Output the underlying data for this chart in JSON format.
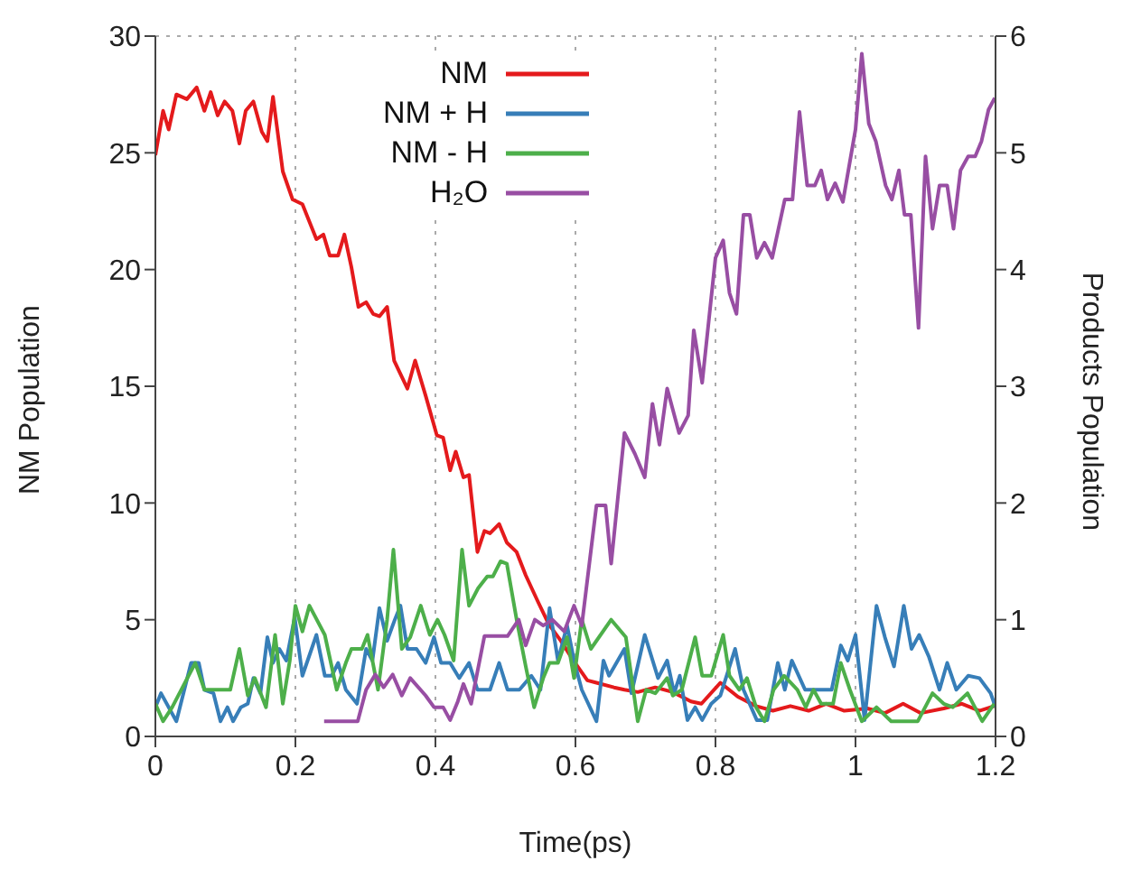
{
  "chart_data": {
    "type": "line",
    "xlabel": "Time(ps)",
    "ylabel": "NM Population",
    "y2label": "Products Population",
    "xlim": [
      0,
      1.2
    ],
    "xticks": [
      0,
      0.2,
      0.4,
      0.6,
      0.8,
      1,
      1.2
    ],
    "ylim": [
      0,
      30
    ],
    "yticks": [
      0,
      5,
      10,
      15,
      20,
      25,
      30
    ],
    "y2lim": [
      0,
      6
    ],
    "y2ticks": [
      0,
      1,
      2,
      3,
      4,
      5,
      6
    ],
    "grid": true,
    "legend": "top",
    "line_style": "solid",
    "marker": "none",
    "series": [
      {
        "name": "NM",
        "color": "#e41a1c",
        "x": [
          0,
          0.011,
          0.019,
          0.03,
          0.045,
          0.059,
          0.07,
          0.079,
          0.089,
          0.099,
          0.11,
          0.12,
          0.129,
          0.14,
          0.152,
          0.16,
          0.168,
          0.182,
          0.196,
          0.21,
          0.23,
          0.24,
          0.249,
          0.261,
          0.27,
          0.28,
          0.29,
          0.301,
          0.311,
          0.32,
          0.331,
          0.341,
          0.36,
          0.371,
          0.386,
          0.402,
          0.411,
          0.421,
          0.429,
          0.44,
          0.448,
          0.46,
          0.47,
          0.478,
          0.491,
          0.502,
          0.516,
          0.529,
          0.546,
          0.562,
          0.579,
          0.596,
          0.617,
          0.63,
          0.655,
          0.67,
          0.689,
          0.714,
          0.739,
          0.765,
          0.78,
          0.807,
          0.832,
          0.858,
          0.882,
          0.907,
          0.933,
          0.958,
          0.984,
          1.017,
          1.042,
          1.068,
          1.093,
          1.126,
          1.152,
          1.177,
          1.198
        ],
        "values": [
          24.9,
          26.8,
          26,
          27.5,
          27.3,
          27.8,
          26.8,
          27.6,
          26.6,
          27.2,
          26.8,
          25.4,
          26.8,
          27.2,
          25.9,
          25.5,
          27.4,
          24.2,
          23,
          22.8,
          21.3,
          21.5,
          20.6,
          20.6,
          21.5,
          20.1,
          18.4,
          18.6,
          18.1,
          18,
          18.4,
          16.1,
          14.9,
          16.1,
          14.6,
          12.9,
          12.8,
          11.4,
          12.2,
          11.1,
          11.2,
          7.9,
          8.8,
          8.7,
          9.1,
          8.3,
          7.9,
          6.9,
          5.8,
          4.8,
          4.1,
          3.3,
          2.4,
          2.3,
          2.1,
          2,
          1.9,
          2.1,
          1.9,
          1.5,
          1.4,
          2.3,
          1.7,
          1.3,
          1.1,
          1.3,
          1.1,
          1.4,
          1.1,
          1.2,
          1,
          1.4,
          1,
          1.2,
          1.4,
          1.1,
          1.3
        ]
      },
      {
        "name": "NM + H",
        "color": "#377eb8",
        "axis": "y2",
        "x": [
          0,
          0.008,
          0.03,
          0.051,
          0.062,
          0.07,
          0.083,
          0.093,
          0.103,
          0.111,
          0.122,
          0.132,
          0.14,
          0.15,
          0.16,
          0.168,
          0.177,
          0.187,
          0.199,
          0.21,
          0.23,
          0.242,
          0.252,
          0.261,
          0.272,
          0.288,
          0.301,
          0.31,
          0.32,
          0.331,
          0.342,
          0.35,
          0.36,
          0.373,
          0.386,
          0.398,
          0.408,
          0.421,
          0.434,
          0.448,
          0.46,
          0.478,
          0.491,
          0.503,
          0.52,
          0.537,
          0.55,
          0.563,
          0.575,
          0.588,
          0.598,
          0.609,
          0.63,
          0.64,
          0.648,
          0.67,
          0.68,
          0.699,
          0.718,
          0.731,
          0.741,
          0.749,
          0.76,
          0.771,
          0.781,
          0.794,
          0.807,
          0.828,
          0.84,
          0.859,
          0.874,
          0.889,
          0.899,
          0.909,
          0.928,
          0.966,
          0.979,
          0.989,
          1,
          1.013,
          1.03,
          1.042,
          1.055,
          1.069,
          1.08,
          1.091,
          1.105,
          1.12,
          1.131,
          1.144,
          1.161,
          1.177,
          1.193,
          1.2
        ],
        "values": [
          0.25,
          0.37,
          0.13,
          0.63,
          0.63,
          0.4,
          0.37,
          0.13,
          0.25,
          0.13,
          0.25,
          0.28,
          0.5,
          0.37,
          0.85,
          0.63,
          0.75,
          0.65,
          1.02,
          0.52,
          0.87,
          0.52,
          0.52,
          0.63,
          0.4,
          0.28,
          0.75,
          0.65,
          1.1,
          0.82,
          1,
          1.12,
          0.75,
          0.75,
          0.63,
          0.85,
          0.63,
          0.63,
          0.5,
          0.63,
          0.4,
          0.4,
          0.63,
          0.4,
          0.4,
          0.52,
          0.4,
          1.1,
          0.65,
          0.95,
          0.65,
          0.4,
          0.13,
          0.65,
          0.52,
          0.75,
          0.37,
          0.87,
          0.5,
          0.65,
          0.37,
          0.52,
          0.14,
          0.25,
          0.14,
          0.28,
          0.35,
          0.75,
          0.4,
          0.14,
          0.14,
          0.63,
          0.4,
          0.65,
          0.4,
          0.4,
          0.78,
          0.65,
          0.87,
          0.14,
          1.12,
          0.85,
          0.6,
          1.12,
          0.75,
          0.87,
          0.68,
          0.4,
          0.63,
          0.4,
          0.52,
          0.5,
          0.37,
          0.25
        ]
      },
      {
        "name": "NM - H",
        "color": "#4daf4a",
        "axis": "y2",
        "x": [
          0,
          0.011,
          0.024,
          0.057,
          0.07,
          0.107,
          0.12,
          0.132,
          0.142,
          0.158,
          0.171,
          0.182,
          0.192,
          0.2,
          0.21,
          0.22,
          0.242,
          0.259,
          0.272,
          0.28,
          0.295,
          0.303,
          0.318,
          0.331,
          0.34,
          0.352,
          0.364,
          0.379,
          0.392,
          0.403,
          0.413,
          0.426,
          0.438,
          0.448,
          0.461,
          0.474,
          0.482,
          0.493,
          0.502,
          0.516,
          0.529,
          0.541,
          0.554,
          0.563,
          0.575,
          0.588,
          0.598,
          0.609,
          0.622,
          0.651,
          0.672,
          0.689,
          0.701,
          0.714,
          0.731,
          0.739,
          0.752,
          0.771,
          0.781,
          0.794,
          0.811,
          0.82,
          0.834,
          0.845,
          0.858,
          0.87,
          0.883,
          0.898,
          0.917,
          0.929,
          0.94,
          0.951,
          0.968,
          0.979,
          0.992,
          1.009,
          1.03,
          1.051,
          1.089,
          1.11,
          1.126,
          1.139,
          1.16,
          1.181,
          1.198
        ],
        "values": [
          0.28,
          0.13,
          0.25,
          0.63,
          0.4,
          0.4,
          0.75,
          0.35,
          0.5,
          0.25,
          0.87,
          0.28,
          0.65,
          1.12,
          0.9,
          1.12,
          0.87,
          0.4,
          0.63,
          0.75,
          0.75,
          0.87,
          0.4,
          1,
          1.6,
          0.75,
          0.85,
          1.12,
          0.87,
          1,
          0.87,
          0.65,
          1.6,
          1.12,
          1.27,
          1.37,
          1.37,
          1.5,
          1.48,
          1,
          0.6,
          0.25,
          0.5,
          0.63,
          0.63,
          0.85,
          0.5,
          1,
          0.75,
          1,
          0.85,
          0.13,
          0.4,
          0.37,
          0.5,
          0.35,
          0.4,
          0.85,
          0.52,
          0.52,
          0.87,
          0.52,
          0.4,
          0.5,
          0.25,
          0.13,
          0.4,
          0.52,
          0.4,
          0.25,
          0.4,
          0.28,
          0.28,
          0.63,
          0.4,
          0.13,
          0.25,
          0.13,
          0.13,
          0.37,
          0.28,
          0.25,
          0.37,
          0.13,
          0.28
        ]
      },
      {
        "name": "H₂O",
        "color": "#984ea3",
        "axis": "y2",
        "x": [
          0.241,
          0.289,
          0.301,
          0.314,
          0.326,
          0.339,
          0.352,
          0.364,
          0.386,
          0.398,
          0.411,
          0.421,
          0.432,
          0.44,
          0.451,
          0.47,
          0.503,
          0.519,
          0.529,
          0.542,
          0.554,
          0.567,
          0.584,
          0.598,
          0.609,
          0.63,
          0.643,
          0.651,
          0.67,
          0.685,
          0.699,
          0.71,
          0.72,
          0.731,
          0.748,
          0.761,
          0.769,
          0.781,
          0.8,
          0.811,
          0.82,
          0.83,
          0.84,
          0.849,
          0.859,
          0.87,
          0.881,
          0.899,
          0.91,
          0.92,
          0.931,
          0.942,
          0.951,
          0.96,
          0.971,
          0.982,
          1,
          1.009,
          1.019,
          1.029,
          1.043,
          1.052,
          1.062,
          1.07,
          1.079,
          1.09,
          1.1,
          1.11,
          1.12,
          1.131,
          1.14,
          1.15,
          1.161,
          1.171,
          1.18,
          1.19,
          1.199
        ],
        "values": [
          0.13,
          0.13,
          0.4,
          0.53,
          0.42,
          0.53,
          0.35,
          0.5,
          0.35,
          0.25,
          0.25,
          0.14,
          0.3,
          0.45,
          0.28,
          0.86,
          0.86,
          1,
          0.78,
          1,
          0.95,
          1,
          0.9,
          1.12,
          0.95,
          1.98,
          1.98,
          1.48,
          2.6,
          2.42,
          2.22,
          2.85,
          2.5,
          2.98,
          2.6,
          2.75,
          3.48,
          3.03,
          4.1,
          4.25,
          3.8,
          3.62,
          4.47,
          4.47,
          4.1,
          4.23,
          4.1,
          4.6,
          4.6,
          5.35,
          4.72,
          4.72,
          4.85,
          4.6,
          4.74,
          4.58,
          5.2,
          5.85,
          5.25,
          5.1,
          4.72,
          4.6,
          4.85,
          4.47,
          4.47,
          3.5,
          4.97,
          4.35,
          4.72,
          4.72,
          4.35,
          4.85,
          4.97,
          4.97,
          5.1,
          5.37,
          5.47
        ]
      }
    ]
  }
}
